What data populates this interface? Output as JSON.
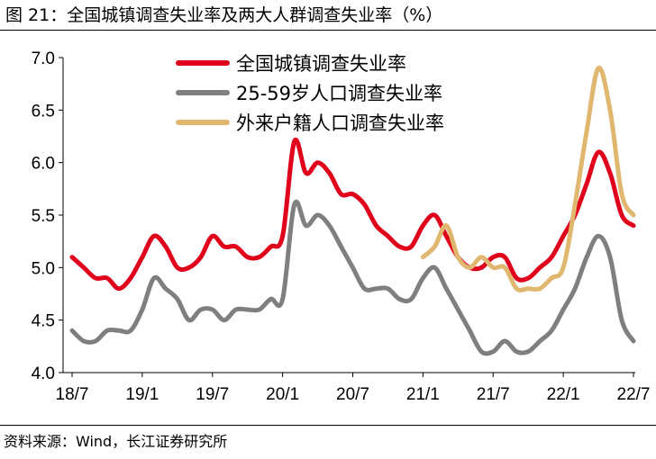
{
  "title": "图 21：全国城镇调查失业率及两大人群调查失业率（%）",
  "source": "资料来源：Wind，长江证券研究所",
  "chart_data": {
    "type": "line",
    "title": "图 21：全国城镇调查失业率及两大人群调查失业率（%）",
    "xlabel": "",
    "ylabel": "",
    "ylim": [
      4.0,
      7.0
    ],
    "yticks": [
      "4.0",
      "4.5",
      "5.0",
      "5.5",
      "6.0",
      "6.5",
      "7.0"
    ],
    "xticks": [
      "18/7",
      "19/1",
      "19/7",
      "20/1",
      "20/7",
      "21/1",
      "21/7",
      "22/1",
      "22/7"
    ],
    "grid": false,
    "legend_position": "top-center",
    "x": [
      "18/7",
      "18/8",
      "18/9",
      "18/10",
      "18/11",
      "18/12",
      "19/1",
      "19/2",
      "19/3",
      "19/4",
      "19/5",
      "19/6",
      "19/7",
      "19/8",
      "19/9",
      "19/10",
      "19/11",
      "19/12",
      "20/1",
      "20/2",
      "20/3",
      "20/4",
      "20/5",
      "20/6",
      "20/7",
      "20/8",
      "20/9",
      "20/10",
      "20/11",
      "20/12",
      "21/1",
      "21/2",
      "21/3",
      "21/4",
      "21/5",
      "21/6",
      "21/7",
      "21/8",
      "21/9",
      "21/10",
      "21/11",
      "21/12",
      "22/1",
      "22/2",
      "22/3",
      "22/4",
      "22/5",
      "22/6",
      "22/7"
    ],
    "series": [
      {
        "name": "全国城镇调查失业率",
        "color": "#e0001b",
        "values": [
          5.1,
          5.0,
          4.9,
          4.9,
          4.8,
          4.9,
          5.1,
          5.3,
          5.2,
          5.0,
          5.0,
          5.1,
          5.3,
          5.2,
          5.2,
          5.1,
          5.1,
          5.2,
          5.3,
          6.2,
          5.9,
          6.0,
          5.9,
          5.7,
          5.7,
          5.6,
          5.4,
          5.3,
          5.2,
          5.2,
          5.4,
          5.5,
          5.3,
          5.1,
          5.0,
          5.0,
          5.1,
          5.1,
          4.9,
          4.9,
          5.0,
          5.1,
          5.3,
          5.5,
          5.8,
          6.1,
          5.9,
          5.5,
          5.4
        ]
      },
      {
        "name": "25-59岁人口调查失业率",
        "color": "#7f7f7f",
        "values": [
          4.4,
          4.3,
          4.3,
          4.4,
          4.4,
          4.4,
          4.6,
          4.9,
          4.8,
          4.7,
          4.5,
          4.6,
          4.6,
          4.5,
          4.6,
          4.6,
          4.6,
          4.7,
          4.7,
          5.6,
          5.4,
          5.5,
          5.4,
          5.2,
          5.0,
          4.8,
          4.8,
          4.8,
          4.7,
          4.7,
          4.9,
          5.0,
          4.8,
          4.6,
          4.4,
          4.2,
          4.2,
          4.3,
          4.2,
          4.2,
          4.3,
          4.4,
          4.6,
          4.8,
          5.1,
          5.3,
          5.1,
          4.5,
          4.3
        ]
      },
      {
        "name": "外来户籍人口调查失业率",
        "color": "#dfb76f",
        "values": [
          null,
          null,
          null,
          null,
          null,
          null,
          null,
          null,
          null,
          null,
          null,
          null,
          null,
          null,
          null,
          null,
          null,
          null,
          null,
          null,
          null,
          null,
          null,
          null,
          null,
          null,
          null,
          null,
          null,
          null,
          5.1,
          5.2,
          5.4,
          5.1,
          5.0,
          5.1,
          5.0,
          5.0,
          4.8,
          4.8,
          4.8,
          4.9,
          5.0,
          5.6,
          6.3,
          6.9,
          6.5,
          5.7,
          5.5
        ]
      }
    ]
  }
}
